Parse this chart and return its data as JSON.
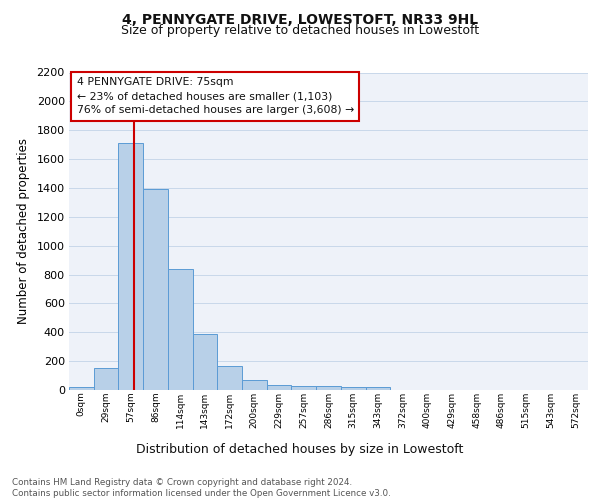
{
  "title1": "4, PENNYGATE DRIVE, LOWESTOFT, NR33 9HL",
  "title2": "Size of property relative to detached houses in Lowestoft",
  "xlabel": "Distribution of detached houses by size in Lowestoft",
  "ylabel": "Number of detached properties",
  "categories": [
    "0sqm",
    "29sqm",
    "57sqm",
    "86sqm",
    "114sqm",
    "143sqm",
    "172sqm",
    "200sqm",
    "229sqm",
    "257sqm",
    "286sqm",
    "315sqm",
    "343sqm",
    "372sqm",
    "400sqm",
    "429sqm",
    "458sqm",
    "486sqm",
    "515sqm",
    "543sqm",
    "572sqm"
  ],
  "values": [
    20,
    155,
    1710,
    1390,
    835,
    390,
    165,
    70,
    35,
    30,
    30,
    20,
    20,
    0,
    0,
    0,
    0,
    0,
    0,
    0,
    0
  ],
  "bar_color": "#b8d0e8",
  "bar_edge_color": "#5b9bd5",
  "reference_line_color": "#cc0000",
  "reference_line_x": 2.62,
  "ylim": [
    0,
    2200
  ],
  "yticks": [
    0,
    200,
    400,
    600,
    800,
    1000,
    1200,
    1400,
    1600,
    1800,
    2000,
    2200
  ],
  "annotation_text": "4 PENNYGATE DRIVE: 75sqm\n← 23% of detached houses are smaller (1,103)\n76% of semi-detached houses are larger (3,608) →",
  "annotation_box_color": "#ffffff",
  "annotation_box_edge": "#cc0000",
  "footnote": "Contains HM Land Registry data © Crown copyright and database right 2024.\nContains public sector information licensed under the Open Government Licence v3.0.",
  "bg_color": "#eef2f9",
  "grid_color": "#c8d8ea"
}
